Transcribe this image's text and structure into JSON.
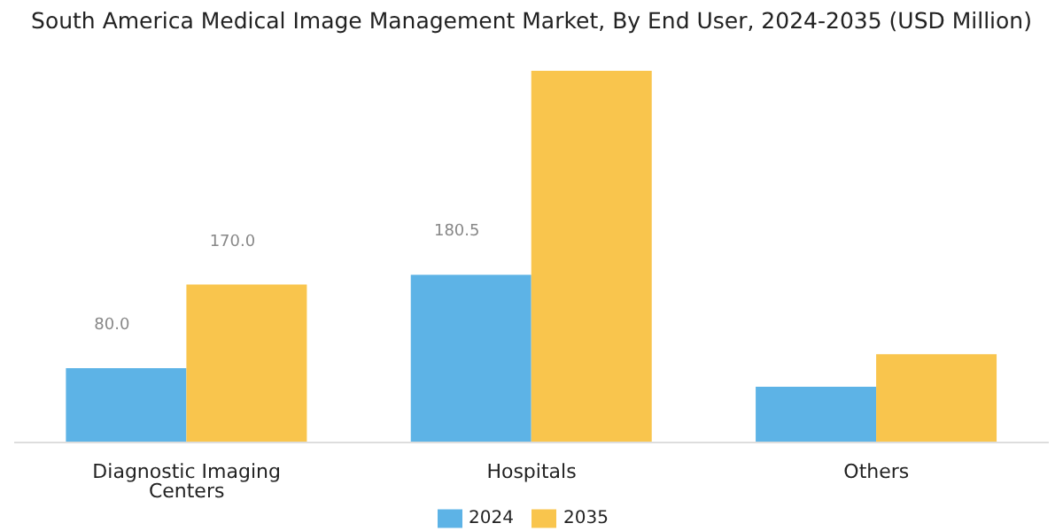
{
  "chart_data": {
    "type": "bar",
    "title": "South America Medical Image Management Market, By End User, 2024-2035 (USD Million)",
    "categories": [
      "Diagnostic Imaging Centers",
      "Hospitals",
      "Others"
    ],
    "series": [
      {
        "name": "2024",
        "color": "#5db3e6",
        "values": [
          80.0,
          180.5,
          60
        ],
        "value_labels": [
          "80.0",
          "180.5",
          null
        ]
      },
      {
        "name": "2035",
        "color": "#f9c54d",
        "values": [
          170.0,
          400,
          95
        ],
        "value_labels": [
          "170.0",
          null,
          null
        ]
      }
    ],
    "legend": "bottom"
  }
}
